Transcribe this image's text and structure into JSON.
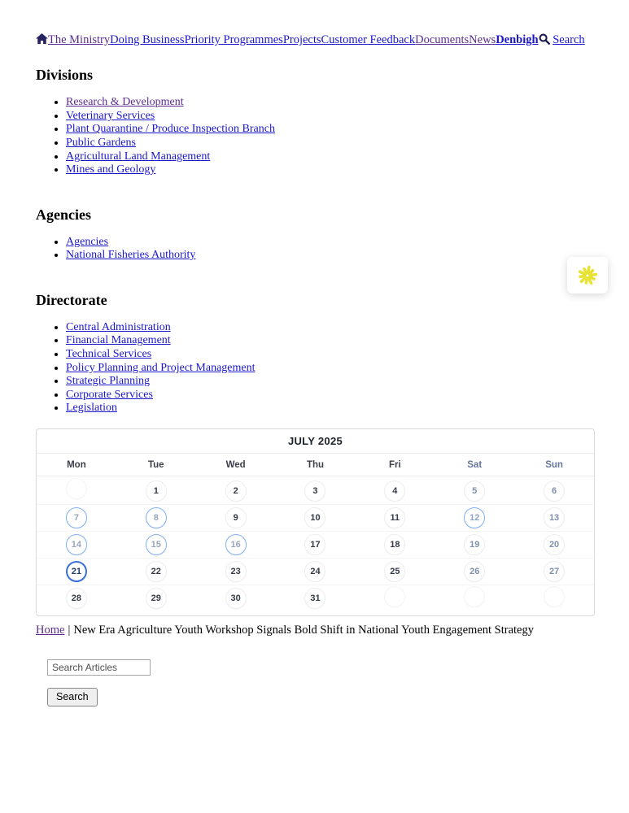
{
  "nav": {
    "links": [
      {
        "label": "The Ministry",
        "visited": true
      },
      {
        "label": "Doing Business",
        "visited": false
      },
      {
        "label": "Priority Programmes",
        "visited": false
      },
      {
        "label": "Projects",
        "visited": false
      },
      {
        "label": "Customer Feedback",
        "visited": false
      },
      {
        "label": "Documents",
        "visited": true
      },
      {
        "label": "News",
        "visited": true
      },
      {
        "label": "Denbigh",
        "visited": false,
        "bold": true
      }
    ],
    "search_label": "Search"
  },
  "sections": [
    {
      "title": "Divisions",
      "items": [
        {
          "label": "Research & Development",
          "visited": true
        },
        {
          "label": "Veterinary Services",
          "visited": false
        },
        {
          "label": "Plant Quarantine / Produce Inspection Branch",
          "visited": false
        },
        {
          "label": "Public Gardens",
          "visited": false
        },
        {
          "label": "Agricultural Land Management",
          "visited": false
        },
        {
          "label": "Mines and Geology",
          "visited": false
        }
      ]
    },
    {
      "title": "Agencies",
      "items": [
        {
          "label": "Agencies",
          "visited": false
        },
        {
          "label": "National Fisheries Authority",
          "visited": false
        }
      ]
    },
    {
      "title": "Directorate",
      "items": [
        {
          "label": "Central Administration",
          "visited": false
        },
        {
          "label": "Financial Management",
          "visited": false
        },
        {
          "label": "Technical Services",
          "visited": false
        },
        {
          "label": "Policy Planning and Project Management",
          "visited": false
        },
        {
          "label": "Strategic Planning",
          "visited": false
        },
        {
          "label": "Corporate Services",
          "visited": false
        },
        {
          "label": "Legislation",
          "visited": false
        }
      ]
    }
  ],
  "calendar": {
    "title": "JULY 2025",
    "day_headers": [
      "Mon",
      "Tue",
      "Wed",
      "Thu",
      "Fri",
      "Sat",
      "Sun"
    ],
    "weeks": [
      [
        "",
        "1",
        "2",
        "3",
        "4",
        "5",
        "6"
      ],
      [
        "7",
        "8",
        "9",
        "10",
        "11",
        "12",
        "13"
      ],
      [
        "14",
        "15",
        "16",
        "17",
        "18",
        "19",
        "20"
      ],
      [
        "21",
        "22",
        "23",
        "24",
        "25",
        "26",
        "27"
      ],
      [
        "28",
        "29",
        "30",
        "31",
        "",
        "",
        ""
      ]
    ],
    "event_days": [
      "7",
      "8",
      "12",
      "14",
      "15",
      "16"
    ],
    "today": "21",
    "colors": {
      "event_ring": "#7fb0f6",
      "today_ring": "#3a6fd8",
      "weekday_text": "#343b47",
      "weekend_text": "#8090ab",
      "header_weekend": "#66759b"
    }
  },
  "breadcrumb": {
    "home_label": "Home",
    "separator": "|",
    "article_title": "New Era Agriculture Youth Workshop Signals Bold Shift in National Youth Engagement Strategy"
  },
  "article_search": {
    "placeholder": "Search Articles",
    "button_label": "Search"
  },
  "accessibility_widget": {
    "icon": "asterisk-icon",
    "icon_color": "#e7e234"
  },
  "link_colors": {
    "unvisited": "#1a16cd",
    "visited": "#5b2d90"
  }
}
